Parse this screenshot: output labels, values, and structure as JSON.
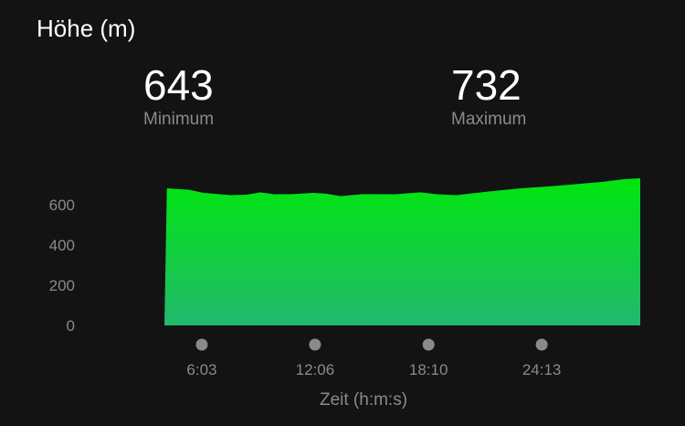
{
  "header": {
    "title": "Höhe (m)"
  },
  "stats": {
    "min": {
      "value": "643",
      "label": "Minimum"
    },
    "max": {
      "value": "732",
      "label": "Maximum"
    }
  },
  "chart_data": {
    "type": "area",
    "title": "Höhe (m)",
    "xlabel": "Zeit (h:m:s)",
    "ylabel": "",
    "x_unit": "seconds",
    "xlim": [
      243,
      1769
    ],
    "ylim": [
      0,
      732
    ],
    "yticks": [
      0,
      200,
      400,
      600
    ],
    "xticks": [
      {
        "value": 363,
        "label": "6:03"
      },
      {
        "value": 726,
        "label": "12:06"
      },
      {
        "value": 1090,
        "label": "18:10"
      },
      {
        "value": 1453,
        "label": "24:13"
      }
    ],
    "grid": false,
    "x": [
      251,
      321,
      369,
      457,
      507,
      550,
      594,
      653,
      720,
      761,
      808,
      879,
      984,
      1063,
      1113,
      1180,
      1289,
      1386,
      1482,
      1582,
      1649,
      1717,
      1769
    ],
    "y": [
      682,
      675,
      659,
      648,
      650,
      662,
      652,
      653,
      659,
      655,
      643,
      653,
      652,
      662,
      653,
      648,
      667,
      682,
      692,
      705,
      714,
      727,
      732
    ],
    "colors": {
      "top": "#00e60e",
      "bottom": "#22b86e",
      "marker": "#8a8a8a"
    }
  }
}
